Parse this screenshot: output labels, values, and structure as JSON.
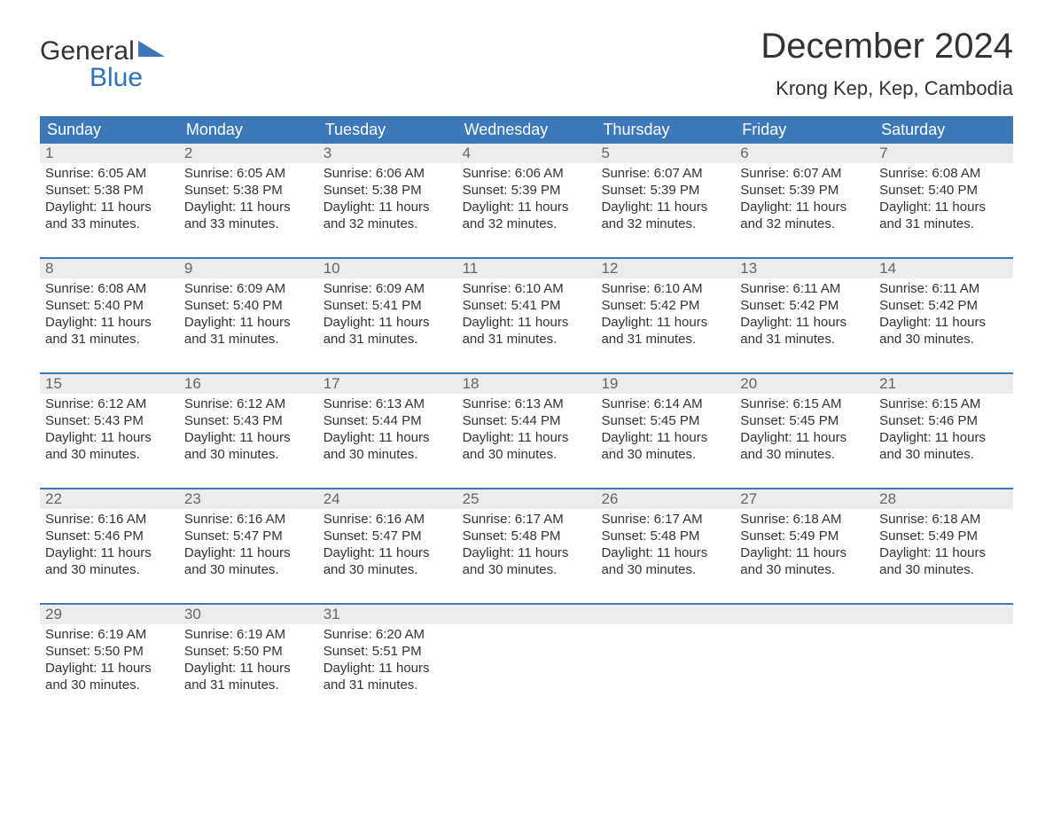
{
  "logo": {
    "line1": "General",
    "line2": "Blue",
    "triangle_color": "#3d79b8"
  },
  "title": "December 2024",
  "location": "Krong Kep, Kep, Cambodia",
  "colors": {
    "header_bg": "#3d79b8",
    "header_text": "#ffffff",
    "daynum_bg": "#ececec",
    "daynum_text": "#666666",
    "body_text": "#333333",
    "week_border": "#3d79b8",
    "page_bg": "#ffffff"
  },
  "fonts": {
    "title_size_pt": 30,
    "location_size_pt": 17,
    "header_size_pt": 14,
    "body_size_pt": 11
  },
  "weekdays": [
    "Sunday",
    "Monday",
    "Tuesday",
    "Wednesday",
    "Thursday",
    "Friday",
    "Saturday"
  ],
  "days": [
    {
      "n": 1,
      "sunrise": "6:05 AM",
      "sunset": "5:38 PM",
      "daylight": "11 hours and 33 minutes."
    },
    {
      "n": 2,
      "sunrise": "6:05 AM",
      "sunset": "5:38 PM",
      "daylight": "11 hours and 33 minutes."
    },
    {
      "n": 3,
      "sunrise": "6:06 AM",
      "sunset": "5:38 PM",
      "daylight": "11 hours and 32 minutes."
    },
    {
      "n": 4,
      "sunrise": "6:06 AM",
      "sunset": "5:39 PM",
      "daylight": "11 hours and 32 minutes."
    },
    {
      "n": 5,
      "sunrise": "6:07 AM",
      "sunset": "5:39 PM",
      "daylight": "11 hours and 32 minutes."
    },
    {
      "n": 6,
      "sunrise": "6:07 AM",
      "sunset": "5:39 PM",
      "daylight": "11 hours and 32 minutes."
    },
    {
      "n": 7,
      "sunrise": "6:08 AM",
      "sunset": "5:40 PM",
      "daylight": "11 hours and 31 minutes."
    },
    {
      "n": 8,
      "sunrise": "6:08 AM",
      "sunset": "5:40 PM",
      "daylight": "11 hours and 31 minutes."
    },
    {
      "n": 9,
      "sunrise": "6:09 AM",
      "sunset": "5:40 PM",
      "daylight": "11 hours and 31 minutes."
    },
    {
      "n": 10,
      "sunrise": "6:09 AM",
      "sunset": "5:41 PM",
      "daylight": "11 hours and 31 minutes."
    },
    {
      "n": 11,
      "sunrise": "6:10 AM",
      "sunset": "5:41 PM",
      "daylight": "11 hours and 31 minutes."
    },
    {
      "n": 12,
      "sunrise": "6:10 AM",
      "sunset": "5:42 PM",
      "daylight": "11 hours and 31 minutes."
    },
    {
      "n": 13,
      "sunrise": "6:11 AM",
      "sunset": "5:42 PM",
      "daylight": "11 hours and 31 minutes."
    },
    {
      "n": 14,
      "sunrise": "6:11 AM",
      "sunset": "5:42 PM",
      "daylight": "11 hours and 30 minutes."
    },
    {
      "n": 15,
      "sunrise": "6:12 AM",
      "sunset": "5:43 PM",
      "daylight": "11 hours and 30 minutes."
    },
    {
      "n": 16,
      "sunrise": "6:12 AM",
      "sunset": "5:43 PM",
      "daylight": "11 hours and 30 minutes."
    },
    {
      "n": 17,
      "sunrise": "6:13 AM",
      "sunset": "5:44 PM",
      "daylight": "11 hours and 30 minutes."
    },
    {
      "n": 18,
      "sunrise": "6:13 AM",
      "sunset": "5:44 PM",
      "daylight": "11 hours and 30 minutes."
    },
    {
      "n": 19,
      "sunrise": "6:14 AM",
      "sunset": "5:45 PM",
      "daylight": "11 hours and 30 minutes."
    },
    {
      "n": 20,
      "sunrise": "6:15 AM",
      "sunset": "5:45 PM",
      "daylight": "11 hours and 30 minutes."
    },
    {
      "n": 21,
      "sunrise": "6:15 AM",
      "sunset": "5:46 PM",
      "daylight": "11 hours and 30 minutes."
    },
    {
      "n": 22,
      "sunrise": "6:16 AM",
      "sunset": "5:46 PM",
      "daylight": "11 hours and 30 minutes."
    },
    {
      "n": 23,
      "sunrise": "6:16 AM",
      "sunset": "5:47 PM",
      "daylight": "11 hours and 30 minutes."
    },
    {
      "n": 24,
      "sunrise": "6:16 AM",
      "sunset": "5:47 PM",
      "daylight": "11 hours and 30 minutes."
    },
    {
      "n": 25,
      "sunrise": "6:17 AM",
      "sunset": "5:48 PM",
      "daylight": "11 hours and 30 minutes."
    },
    {
      "n": 26,
      "sunrise": "6:17 AM",
      "sunset": "5:48 PM",
      "daylight": "11 hours and 30 minutes."
    },
    {
      "n": 27,
      "sunrise": "6:18 AM",
      "sunset": "5:49 PM",
      "daylight": "11 hours and 30 minutes."
    },
    {
      "n": 28,
      "sunrise": "6:18 AM",
      "sunset": "5:49 PM",
      "daylight": "11 hours and 30 minutes."
    },
    {
      "n": 29,
      "sunrise": "6:19 AM",
      "sunset": "5:50 PM",
      "daylight": "11 hours and 30 minutes."
    },
    {
      "n": 30,
      "sunrise": "6:19 AM",
      "sunset": "5:50 PM",
      "daylight": "11 hours and 31 minutes."
    },
    {
      "n": 31,
      "sunrise": "6:20 AM",
      "sunset": "5:51 PM",
      "daylight": "11 hours and 31 minutes."
    }
  ],
  "labels": {
    "sunrise": "Sunrise:",
    "sunset": "Sunset:",
    "daylight": "Daylight:"
  },
  "start_weekday_index": 0,
  "rows": 5
}
